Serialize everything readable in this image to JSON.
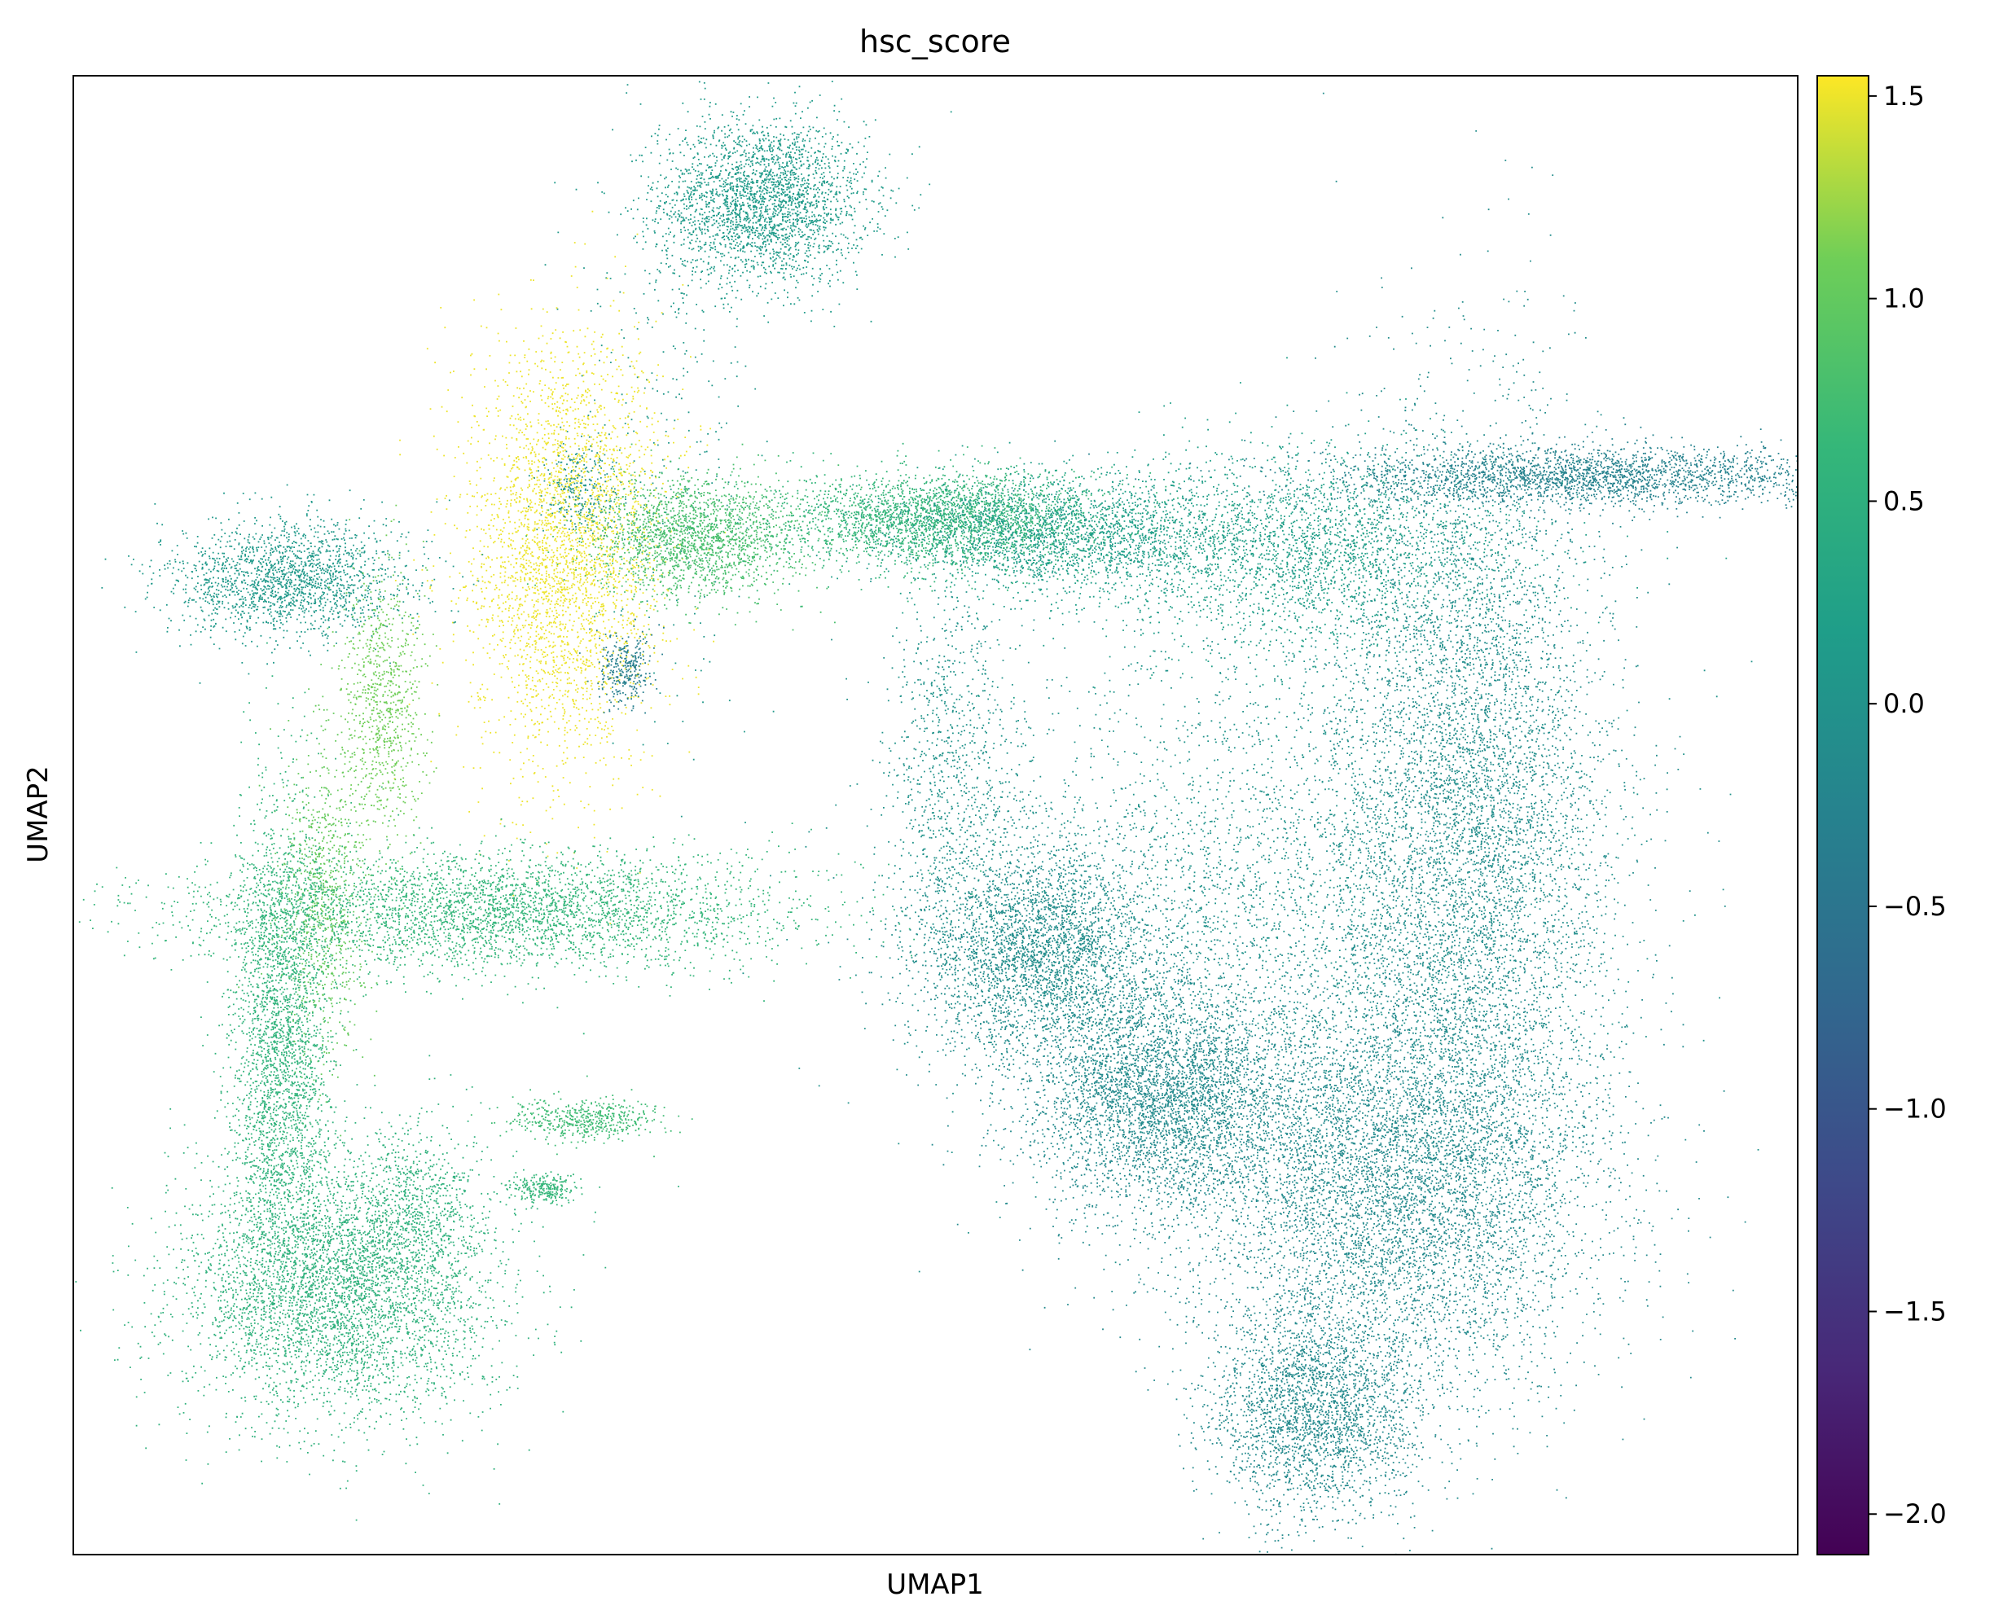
{
  "chart_data": {
    "type": "scatter",
    "title": "hsc_score",
    "xlabel": "UMAP1",
    "ylabel": "UMAP2",
    "x_ticks": false,
    "y_ticks": false,
    "grid": false,
    "colormap": "viridis",
    "colorbar": {
      "label": "",
      "range": [
        -2.1,
        1.55
      ],
      "ticks": [
        1.5,
        1.0,
        0.5,
        0.0,
        -0.5,
        -1.0,
        -1.5,
        -2.0
      ],
      "tick_labels": [
        "1.5",
        "1.0",
        "0.5",
        "0.0",
        "−0.5",
        "−1.0",
        "−1.5",
        "−2.0"
      ]
    },
    "xlim": [
      0,
      1000
    ],
    "ylim": [
      0,
      1000
    ],
    "clusters": [
      {
        "center": [
          400,
          915
        ],
        "spread": [
          30,
          28
        ],
        "value": 0.1,
        "count": 2600
      },
      {
        "center": [
          345,
          780
        ],
        "spread": [
          25,
          100
        ],
        "value": 0.1,
        "count": 300
      },
      {
        "center": [
          285,
          680
        ],
        "spread": [
          28,
          70
        ],
        "value": 1.5,
        "count": 3200
      },
      {
        "center": [
          295,
          722
        ],
        "spread": [
          12,
          16
        ],
        "value": 0.0,
        "count": 250
      },
      {
        "center": [
          360,
          688
        ],
        "spread": [
          30,
          20
        ],
        "value": 0.8,
        "count": 1800
      },
      {
        "center": [
          500,
          700
        ],
        "spread": [
          50,
          16
        ],
        "value": 0.6,
        "count": 2600
      },
      {
        "center": [
          570,
          690
        ],
        "spread": [
          50,
          20
        ],
        "value": 0.2,
        "count": 2000
      },
      {
        "center": [
          125,
          660
        ],
        "spread": [
          35,
          20
        ],
        "value": 0.1,
        "count": 1800
      },
      {
        "center": [
          180,
          575
        ],
        "spread": [
          12,
          45
        ],
        "value": 1.1,
        "count": 800
      },
      {
        "center": [
          145,
          445
        ],
        "spread": [
          12,
          55
        ],
        "value": 1.0,
        "count": 800
      },
      {
        "center": [
          240,
          435
        ],
        "spread": [
          90,
          20
        ],
        "value": 0.6,
        "count": 3600
      },
      {
        "center": [
          120,
          345
        ],
        "spread": [
          14,
          80
        ],
        "value": 0.55,
        "count": 2600
      },
      {
        "center": [
          155,
          180
        ],
        "spread": [
          45,
          45
        ],
        "value": 0.55,
        "count": 4400
      },
      {
        "center": [
          200,
          240
        ],
        "spread": [
          20,
          25
        ],
        "value": 0.5,
        "count": 500
      },
      {
        "center": [
          298,
          295
        ],
        "spread": [
          22,
          7
        ],
        "value": 0.7,
        "count": 500
      },
      {
        "center": [
          510,
          525
        ],
        "spread": [
          20,
          60
        ],
        "value": 0.0,
        "count": 900
      },
      {
        "center": [
          560,
          410
        ],
        "spread": [
          35,
          35
        ],
        "value": -0.1,
        "count": 3000
      },
      {
        "center": [
          630,
          310
        ],
        "spread": [
          40,
          40
        ],
        "value": -0.15,
        "count": 3800
      },
      {
        "center": [
          690,
          450
        ],
        "spread": [
          90,
          90
        ],
        "value": 0.0,
        "count": 3200
      },
      {
        "center": [
          715,
          680
        ],
        "spread": [
          60,
          35
        ],
        "value": 0.2,
        "count": 2600
      },
      {
        "center": [
          810,
          500
        ],
        "spread": [
          40,
          130
        ],
        "value": -0.1,
        "count": 6000
      },
      {
        "center": [
          765,
          250
        ],
        "spread": [
          60,
          70
        ],
        "value": -0.15,
        "count": 6400
      },
      {
        "center": [
          720,
          95
        ],
        "spread": [
          30,
          35
        ],
        "value": -0.15,
        "count": 2400
      },
      {
        "center": [
          880,
          730
        ],
        "spread": [
          80,
          10
        ],
        "value": -0.3,
        "count": 2400
      },
      {
        "center": [
          320,
          600
        ],
        "spread": [
          8,
          12
        ],
        "value": -0.3,
        "count": 300
      },
      {
        "center": [
          272,
          248
        ],
        "spread": [
          10,
          5
        ],
        "value": 0.6,
        "count": 250
      }
    ]
  }
}
